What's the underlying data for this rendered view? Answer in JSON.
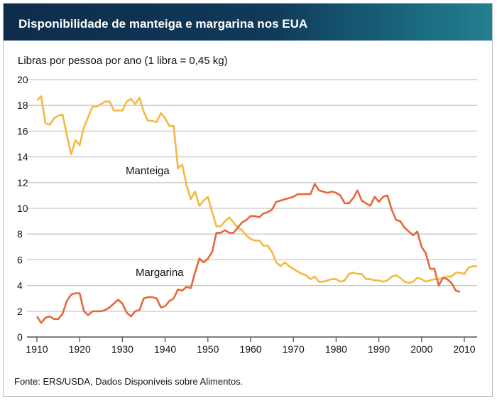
{
  "title": "Disponibilidade de manteiga e margarina nos EUA",
  "source": "Fonte: ERS/USDA, Dados Disponíveis sobre Alimentos.",
  "colors": {
    "manteiga": "#f5b942",
    "margarina": "#e5683a",
    "grid": "#c8c8c8",
    "title_bg": "#0d2c4a"
  },
  "chart_data": {
    "type": "line",
    "title": "Disponibilidade de manteiga e margarina nos EUA",
    "ylabel": "Libras por pessoa por ano (1 libra = 0,45 kg)",
    "xlabel": "",
    "xlim": [
      1910,
      2013
    ],
    "ylim": [
      0,
      20
    ],
    "xticks": [
      1910,
      1920,
      1930,
      1940,
      1950,
      1960,
      1970,
      1980,
      1990,
      2000,
      2010
    ],
    "yticks": [
      0,
      2,
      4,
      6,
      8,
      10,
      12,
      14,
      16,
      18,
      20
    ],
    "grid": "horizontal",
    "legend": "inline labels",
    "series": [
      {
        "name": "Manteiga",
        "start_year": 1910,
        "values": [
          18.4,
          18.7,
          16.6,
          16.5,
          17.0,
          17.2,
          17.3,
          15.7,
          14.2,
          15.3,
          14.9,
          16.3,
          17.1,
          17.9,
          17.9,
          18.1,
          18.3,
          18.3,
          17.6,
          17.6,
          17.6,
          18.3,
          18.5,
          18.1,
          18.6,
          17.5,
          16.8,
          16.8,
          16.7,
          17.4,
          17.0,
          16.4,
          16.4,
          13.1,
          13.4,
          11.8,
          10.7,
          11.3,
          10.2,
          10.6,
          10.9,
          9.7,
          8.6,
          8.6,
          9.0,
          9.3,
          8.9,
          8.5,
          8.3,
          7.9,
          7.6,
          7.5,
          7.5,
          7.1,
          7.1,
          6.6,
          5.8,
          5.5,
          5.8,
          5.5,
          5.3,
          5.1,
          4.9,
          4.8,
          4.5,
          4.7,
          4.3,
          4.3,
          4.4,
          4.5,
          4.5,
          4.3,
          4.4,
          4.9,
          5.0,
          4.9,
          4.9,
          4.5,
          4.5,
          4.4,
          4.4,
          4.3,
          4.4,
          4.7,
          4.8,
          4.6,
          4.3,
          4.2,
          4.3,
          4.6,
          4.5,
          4.3,
          4.4,
          4.5,
          4.5,
          4.6,
          4.7,
          4.7,
          5.0,
          5.0,
          4.9,
          5.4,
          5.5,
          5.5
        ]
      },
      {
        "name": "Margarina",
        "start_year": 1910,
        "values": [
          1.6,
          1.1,
          1.5,
          1.6,
          1.4,
          1.4,
          1.8,
          2.8,
          3.3,
          3.4,
          3.4,
          2.0,
          1.7,
          2.0,
          2.0,
          2.0,
          2.1,
          2.3,
          2.6,
          2.9,
          2.6,
          1.9,
          1.6,
          2.0,
          2.1,
          3.0,
          3.1,
          3.1,
          3.0,
          2.3,
          2.4,
          2.8,
          3.0,
          3.7,
          3.6,
          3.9,
          3.8,
          5.0,
          6.1,
          5.8,
          6.1,
          6.6,
          8.1,
          8.1,
          8.3,
          8.1,
          8.1,
          8.5,
          8.9,
          9.1,
          9.4,
          9.4,
          9.3,
          9.6,
          9.7,
          9.9,
          10.5,
          10.6,
          10.7,
          10.8,
          10.9,
          11.1,
          11.1,
          11.1,
          11.1,
          11.9,
          11.4,
          11.3,
          11.2,
          11.3,
          11.2,
          11.0,
          10.4,
          10.4,
          10.8,
          11.4,
          10.6,
          10.4,
          10.2,
          10.9,
          10.5,
          10.9,
          11.0,
          9.9,
          9.1,
          9.0,
          8.5,
          8.2,
          7.9,
          8.2,
          7.0,
          6.5,
          5.3,
          5.3,
          4.0,
          4.6,
          4.5,
          4.2,
          3.6,
          3.5
        ]
      }
    ]
  }
}
